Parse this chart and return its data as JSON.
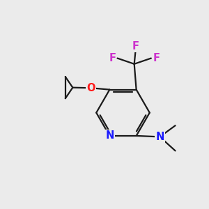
{
  "bg_color": "#ebebeb",
  "bond_color": "#1a1a1a",
  "bond_width": 1.6,
  "atom_colors": {
    "N_ring": "#1a1aff",
    "N_amine": "#1a1aff",
    "O": "#ff1a1a",
    "F": "#cc33cc",
    "C": "#1a1a1a"
  },
  "font_size_atom": 10.5,
  "font_size_small": 9
}
